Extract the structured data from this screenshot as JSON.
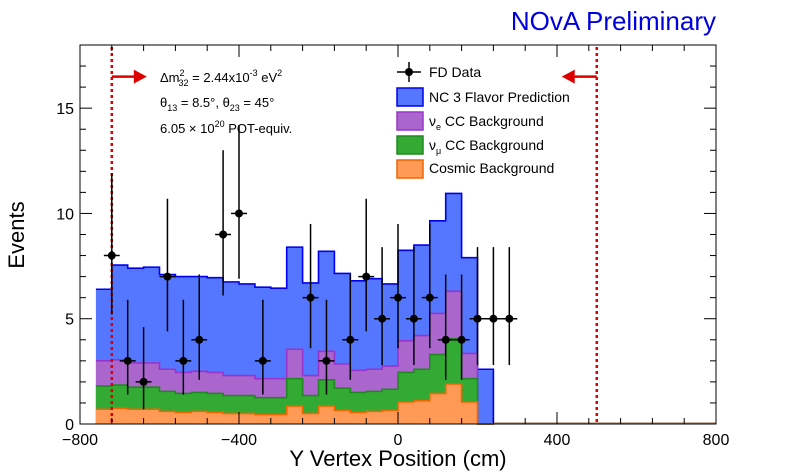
{
  "chart_data": {
    "type": "histogram",
    "title": "NOvA Preliminary",
    "title_color": "#0000dd",
    "xlabel": "Y Vertex Position (cm)",
    "ylabel": "Events",
    "xlim": [
      -800,
      800
    ],
    "ylim": [
      0,
      18
    ],
    "xticks": [
      -800,
      -400,
      0,
      400,
      800
    ],
    "xtick_labels": [
      "−800",
      "−400",
      "0",
      "400",
      "800"
    ],
    "yticks": [
      0,
      5,
      10,
      15
    ],
    "ytick_labels": [
      "0",
      "5",
      "10",
      "15"
    ],
    "grid": false,
    "legend_position": "top-center",
    "annotations": {
      "dm2_lead": "Δm",
      "dm2_sup": "2",
      "dm2_sub": "32",
      "dm2_rest": " = 2.44x10",
      "dm2_exp": "-3",
      "dm2_unit": " eV",
      "dm2_unit_sup": "2",
      "theta13_lead": "θ",
      "theta13_sub": "13",
      "theta13_rest": " = 8.5°, ",
      "theta23_lead": "θ",
      "theta23_sub": "23",
      "theta23_rest": " = 45°",
      "pot_lead": "6.05 × 10",
      "pot_exp": "20",
      "pot_rest": " POT-equiv."
    },
    "cuts": {
      "values": [
        -720,
        500
      ],
      "color": "#dd0000",
      "style": "dotted",
      "arrow_directions": [
        "right",
        "left"
      ]
    },
    "bin_edges": [
      -760,
      -720,
      -680,
      -640,
      -600,
      -560,
      -520,
      -480,
      -440,
      -400,
      -360,
      -320,
      -280,
      -240,
      -200,
      -160,
      -120,
      -80,
      -40,
      0,
      40,
      80,
      120,
      160,
      200,
      240,
      280,
      320,
      360,
      400,
      440,
      480,
      520,
      560,
      600,
      640,
      680,
      720,
      760,
      800
    ],
    "series": [
      {
        "name": "FD Data",
        "legend_label": "FD Data",
        "type": "points",
        "color": "#000000",
        "x": [
          -720,
          -680,
          -640,
          -580,
          -540,
          -500,
          -440,
          -400,
          -340,
          -220,
          -180,
          -120,
          -80,
          -40,
          0,
          40,
          80,
          120,
          160,
          200,
          240,
          280
        ],
        "y": [
          8,
          3,
          2,
          7,
          3,
          4,
          9,
          10,
          3,
          6,
          3,
          4,
          7,
          5,
          6,
          5,
          6,
          4,
          4,
          5,
          5,
          5
        ],
        "xerr": 20,
        "yerr_low": [
          2.8,
          1.6,
          1.3,
          2.6,
          1.6,
          1.9,
          2.9,
          3.1,
          1.6,
          2.4,
          1.6,
          1.9,
          2.6,
          2.2,
          2.4,
          2.2,
          2.4,
          1.9,
          1.9,
          2.2,
          2.2,
          2.2
        ],
        "yerr_high": [
          3.9,
          2.9,
          2.6,
          3.7,
          2.9,
          3.1,
          4.0,
          4.2,
          2.9,
          3.5,
          2.9,
          3.1,
          3.7,
          3.4,
          3.5,
          3.4,
          3.5,
          3.1,
          3.1,
          3.4,
          3.4,
          3.4
        ]
      },
      {
        "name": "NC 3 Flavor Prediction",
        "legend_label": "NC 3 Flavor Prediction",
        "type": "stacked_hist",
        "fill": "#5577ff",
        "line": "#0000ee",
        "values": [
          3.4,
          4.5,
          4.5,
          4.55,
          4.5,
          4.55,
          4.5,
          4.5,
          4.45,
          4.35,
          4.35,
          4.3,
          4.85,
          4.4,
          4.75,
          4.3,
          4.25,
          4.3,
          3.9,
          4.3,
          4.3,
          4.4,
          4.65,
          4.55,
          2.6,
          0,
          0,
          0,
          0,
          0,
          0,
          0,
          0,
          0,
          0,
          0,
          0,
          0,
          0
        ]
      },
      {
        "name": "ν_e CC Background",
        "legend_label_lead": "ν",
        "legend_label_sub": "e",
        "legend_label_rest": " CC Background",
        "type": "stacked_hist",
        "fill": "#aa66cc",
        "line": "#9933cc",
        "values": [
          1.2,
          1.2,
          1.15,
          1.15,
          1.05,
          1.0,
          1.0,
          1.0,
          0.95,
          0.95,
          0.9,
          0.9,
          1.4,
          0.95,
          1.35,
          1.15,
          1.05,
          1.05,
          1.1,
          1.5,
          1.6,
          1.95,
          2.25,
          1.2,
          0.0,
          0,
          0,
          0,
          0,
          0,
          0,
          0,
          0,
          0,
          0,
          0,
          0,
          0,
          0
        ]
      },
      {
        "name": "ν_μ CC Background",
        "legend_label_lead": "ν",
        "legend_label_sub": "μ",
        "legend_label_rest": " CC Background",
        "type": "stacked_hist",
        "fill": "#33aa33",
        "line": "#228822",
        "values": [
          1.1,
          1.1,
          1.05,
          1.05,
          0.95,
          0.9,
          0.9,
          0.9,
          0.85,
          0.85,
          0.8,
          0.8,
          1.3,
          0.85,
          1.25,
          1.05,
          0.95,
          0.95,
          1.0,
          1.4,
          1.5,
          1.85,
          2.15,
          1.1,
          0.0,
          0,
          0,
          0,
          0,
          0,
          0,
          0,
          0,
          0,
          0,
          0,
          0,
          0,
          0
        ]
      },
      {
        "name": "Cosmic Background",
        "legend_label": "Cosmic Background",
        "type": "stacked_hist",
        "fill": "#ff9955",
        "line": "#ee6600",
        "values": [
          0.7,
          0.75,
          0.7,
          0.7,
          0.6,
          0.55,
          0.6,
          0.55,
          0.5,
          0.5,
          0.45,
          0.45,
          0.85,
          0.5,
          0.85,
          0.65,
          0.55,
          0.6,
          0.65,
          1.05,
          1.1,
          1.45,
          1.9,
          1.05,
          0.0,
          0.02,
          0.02,
          0.02,
          0.02,
          0.02,
          0.02,
          0.02,
          0.02,
          0.02,
          0.02,
          0.02,
          0.02,
          0.02,
          0.02
        ]
      }
    ]
  }
}
